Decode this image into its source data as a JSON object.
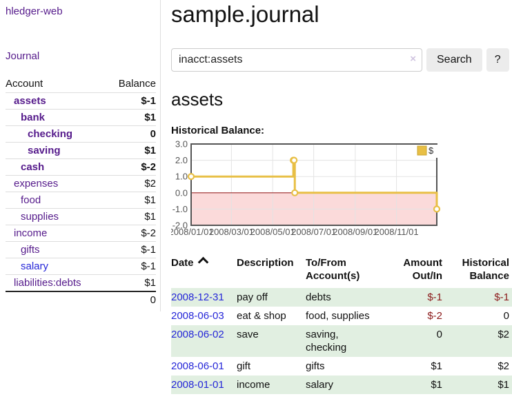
{
  "app": {
    "title": "hledger-web"
  },
  "sidebar": {
    "journal_link": "Journal",
    "accounts": {
      "header_account": "Account",
      "header_balance": "Balance",
      "rows": [
        {
          "name": "assets",
          "depth": 1,
          "balance": "$-1",
          "in_selected": true,
          "balance_tone": "neg-strong"
        },
        {
          "name": "bank",
          "depth": 2,
          "balance": "$1",
          "in_selected": true,
          "balance_tone": "normal"
        },
        {
          "name": "checking",
          "depth": 3,
          "balance": "0",
          "in_selected": true,
          "balance_tone": "normal"
        },
        {
          "name": "saving",
          "depth": 3,
          "balance": "$1",
          "in_selected": true,
          "balance_tone": "normal"
        },
        {
          "name": "cash",
          "depth": 2,
          "balance": "$-2",
          "in_selected": true,
          "balance_tone": "neg-strong"
        },
        {
          "name": "expenses",
          "depth": 1,
          "balance": "$2",
          "balance_tone": "normal"
        },
        {
          "name": "food",
          "depth": 2,
          "balance": "$1",
          "balance_tone": "normal"
        },
        {
          "name": "supplies",
          "depth": 2,
          "balance": "$1",
          "balance_tone": "normal"
        },
        {
          "name": "income",
          "depth": 1,
          "balance": "$-2",
          "balance_tone": "neg-muted"
        },
        {
          "name": "gifts",
          "depth": 2,
          "balance": "$-1",
          "balance_tone": "neg-muted"
        },
        {
          "name": "salary",
          "depth": 2,
          "balance": "$-1",
          "balance_tone": "neg-muted",
          "link_style": "blue"
        },
        {
          "name": "liabilities:debts",
          "depth": 1,
          "balance": "$1",
          "balance_tone": "normal"
        }
      ],
      "total": "0"
    }
  },
  "main": {
    "title": "sample.journal",
    "search": {
      "value": "inacct:assets",
      "clear_icon": "×",
      "button_label": "Search",
      "help_label": "?"
    },
    "account_heading": "assets"
  },
  "chart_data": {
    "type": "line",
    "step": true,
    "title": "Historical Balance:",
    "legend": {
      "label": "$",
      "position": "top-right"
    },
    "ylim": [
      -2,
      3
    ],
    "y_ticks": [
      3.0,
      2.0,
      1.0,
      0.0,
      -1.0,
      -2.0
    ],
    "x_ticks": [
      {
        "label": "2008/01/01",
        "f": 0.0
      },
      {
        "label": "2008/03/01",
        "f": 0.164
      },
      {
        "label": "2008/05/01",
        "f": 0.332
      },
      {
        "label": "2008/07/01",
        "f": 0.499
      },
      {
        "label": "2008/09/01",
        "f": 0.668
      },
      {
        "label": "2008/11/01",
        "f": 0.836
      }
    ],
    "series": [
      {
        "name": "$",
        "color": "#e8bf45",
        "points": [
          {
            "date": "2008-01-01",
            "f": 0.0,
            "y": 1
          },
          {
            "date": "2008-06-01",
            "f": 0.416,
            "y": 2
          },
          {
            "date": "2008-06-02",
            "f": 0.419,
            "y": 2
          },
          {
            "date": "2008-06-03",
            "f": 0.422,
            "y": 0
          },
          {
            "date": "2008-12-31",
            "f": 1.0,
            "y": -1
          }
        ]
      }
    ],
    "zero_line_color": "#982727",
    "negative_region_fill": "#fbdada",
    "grid_color": "#e3e3e3",
    "border_color": "#545454",
    "tick_label_color": "#555555"
  },
  "register": {
    "headers": [
      {
        "lines": [
          "Date"
        ],
        "sort": "asc",
        "align": "left"
      },
      {
        "lines": [
          "Description"
        ],
        "align": "left"
      },
      {
        "lines": [
          "To/From",
          "Account(s)"
        ],
        "align": "left"
      },
      {
        "lines": [
          "Amount",
          "Out/In"
        ],
        "align": "right"
      },
      {
        "lines": [
          "Historical",
          "Balance"
        ],
        "align": "right"
      }
    ],
    "rows": [
      {
        "date": "2008-12-31",
        "description": "pay off",
        "accounts": "debts",
        "amount": "$-1",
        "balance": "$-1"
      },
      {
        "date": "2008-06-03",
        "description": "eat & shop",
        "accounts": "food, supplies",
        "amount": "$-2",
        "balance": "0"
      },
      {
        "date": "2008-06-02",
        "description": "save",
        "accounts": "saving, checking",
        "amount": "0",
        "balance": "$2"
      },
      {
        "date": "2008-06-01",
        "description": "gift",
        "accounts": "gifts",
        "amount": "$1",
        "balance": "$2"
      },
      {
        "date": "2008-01-01",
        "description": "income",
        "accounts": "salary",
        "amount": "$1",
        "balance": "$1"
      }
    ]
  },
  "colors": {
    "link_purple": "#551a8b",
    "link_blue": "#2526d8",
    "negative_strong": "#8b1a1a",
    "negative_muted": "#c98b8b",
    "row_shade_green": "#e1efe1",
    "series_gold": "#e8bf45"
  }
}
